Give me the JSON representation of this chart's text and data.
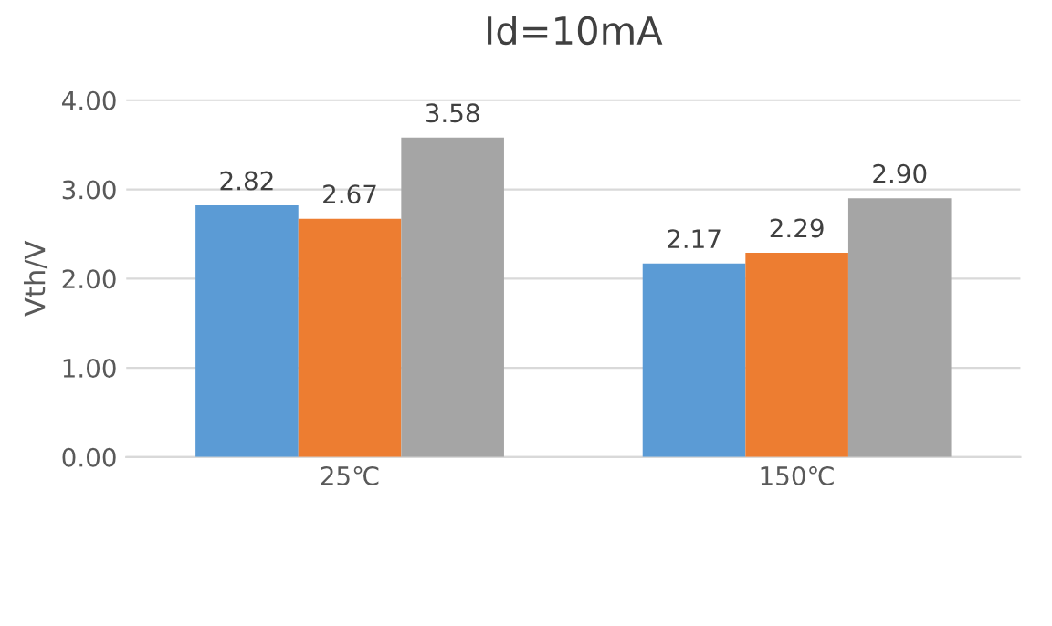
{
  "chart_data": {
    "type": "bar",
    "title": "Id=10mA",
    "ylabel": "Vth/V",
    "categories": [
      "25℃",
      "150℃"
    ],
    "series": [
      {
        "color": "#5b9bd5",
        "values": [
          2.82,
          2.17
        ],
        "value_labels": [
          "2.82",
          "2.17"
        ]
      },
      {
        "color": "#ed7d31",
        "values": [
          2.67,
          2.29
        ],
        "value_labels": [
          "2.67",
          "2.29"
        ]
      },
      {
        "color": "#a5a5a5",
        "values": [
          3.58,
          2.9
        ],
        "value_labels": [
          "3.58",
          "2.90"
        ]
      }
    ],
    "ylim": [
      0,
      4
    ],
    "yticks": [
      {
        "value": 0,
        "label": "0.00"
      },
      {
        "value": 1,
        "label": "1.00"
      },
      {
        "value": 2,
        "label": "2.00"
      },
      {
        "value": 3,
        "label": "3.00"
      },
      {
        "value": 4,
        "label": "4.00"
      }
    ],
    "grid": "y"
  }
}
